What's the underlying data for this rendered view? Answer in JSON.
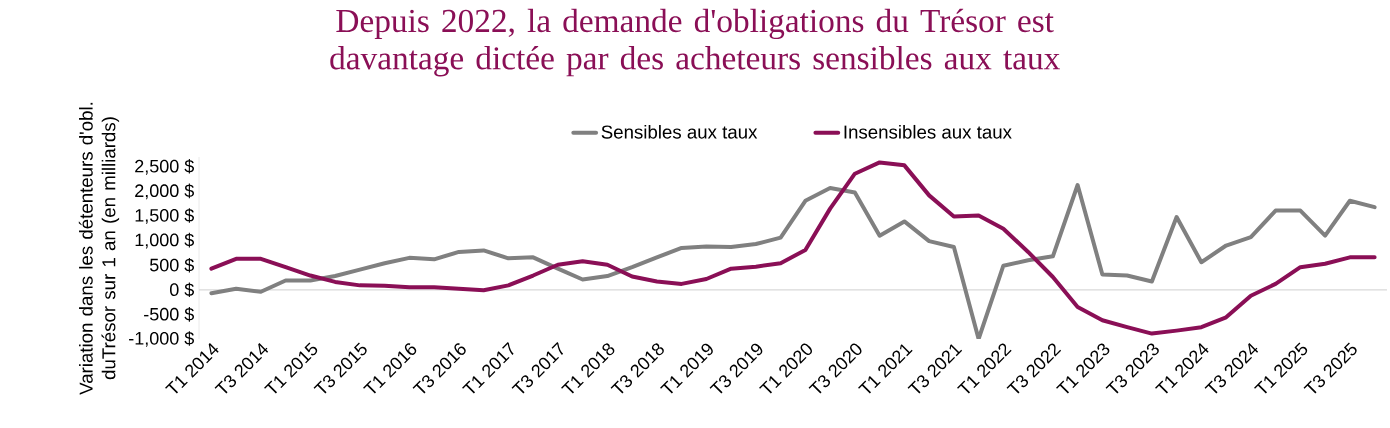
{
  "chart_data": {
    "type": "line",
    "title": "Depuis 2022, la demande d'obligations du Trésor est davantage dictée par des acheteurs sensibles aux taux",
    "ylabel": "Variation dans les détenteurs d'obl. duTrésor sur 1 an (en milliards)",
    "categories": [
      "T1 2014",
      null,
      "T3 2014",
      null,
      "T1 2015",
      null,
      "T3 2015",
      null,
      "T1 2016",
      null,
      "T3 2016",
      null,
      "T1 2017",
      null,
      "T3 2017",
      null,
      "T1 2018",
      null,
      "T3 2018",
      null,
      "T1 2019",
      null,
      "T3 2019",
      null,
      "T1 2020",
      null,
      "T3 2020",
      null,
      "T1 2021",
      null,
      "T3 2021",
      null,
      "T1 2022",
      null,
      "T3 2022",
      null,
      "T1 2023",
      null,
      "T3 2023",
      null,
      "T1 2024",
      null,
      "T3 2024",
      null,
      "T1 2025",
      null,
      "T3 2025",
      null
    ],
    "series": [
      {
        "name": "Sensibles aux taux",
        "color": "#808080",
        "values": [
          -70,
          20,
          -40,
          190,
          190,
          280,
          410,
          540,
          650,
          620,
          770,
          800,
          640,
          660,
          430,
          210,
          280,
          460,
          660,
          850,
          880,
          870,
          930,
          1060,
          1810,
          2070,
          1980,
          1100,
          1390,
          990,
          870,
          -1000,
          490,
          600,
          680,
          2130,
          310,
          290,
          170,
          1480,
          560,
          900,
          1070,
          1610,
          1610,
          1100,
          1810,
          1680
        ]
      },
      {
        "name": "Insensibles aux taux",
        "color": "#8a0f56",
        "values": [
          430,
          630,
          630,
          460,
          290,
          160,
          90,
          80,
          50,
          50,
          20,
          -10,
          90,
          290,
          510,
          580,
          510,
          270,
          170,
          120,
          220,
          430,
          470,
          540,
          810,
          1650,
          2360,
          2590,
          2530,
          1920,
          1490,
          1510,
          1240,
          770,
          260,
          -350,
          -620,
          -760,
          -890,
          -830,
          -760,
          -560,
          -120,
          120,
          460,
          530,
          660,
          660
        ]
      }
    ],
    "yticks": [
      {
        "value": -1000,
        "label": "-1,000 $"
      },
      {
        "value": -500,
        "label": "-500 $"
      },
      {
        "value": 0,
        "label": "0 $"
      },
      {
        "value": 500,
        "label": "500 $"
      },
      {
        "value": 1000,
        "label": "1,000 $"
      },
      {
        "value": 1500,
        "label": "1,500 $"
      },
      {
        "value": 2000,
        "label": "2,000 $"
      },
      {
        "value": 2500,
        "label": "2,500 $"
      }
    ],
    "ylim": [
      -1000,
      2700
    ],
    "ref_lines": [
      {
        "axis": "y",
        "value": 0,
        "color": "#d9d9d9"
      }
    ],
    "legend": "top",
    "grid": false,
    "marker": "none",
    "line_style": "solid"
  }
}
